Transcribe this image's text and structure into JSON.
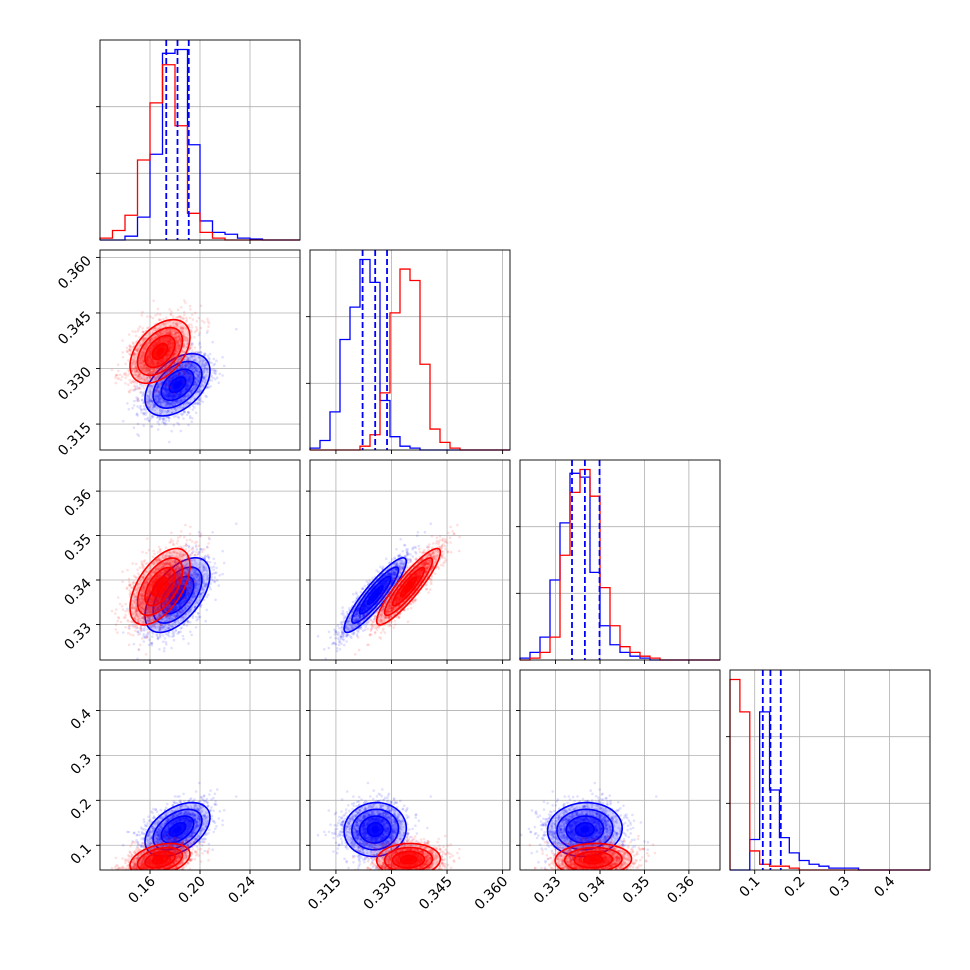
{
  "chart_data": {
    "type": "corner",
    "grid": true,
    "series_colors": {
      "blue": "#0000ff",
      "red": "#ff0000"
    },
    "parameters": [
      {
        "id": "p1",
        "range": [
          0.12,
          0.28
        ],
        "ticks": [
          0.16,
          0.2,
          0.24
        ],
        "tick_labels": [
          "0.16",
          "0.20",
          "0.24"
        ],
        "hist": {
          "bin_edges": [
            0.12,
            0.13,
            0.14,
            0.15,
            0.16,
            0.17,
            0.18,
            0.19,
            0.2,
            0.21,
            0.22,
            0.23,
            0.24,
            0.25,
            0.26,
            0.27,
            0.28
          ],
          "blue": [
            0,
            0,
            0.02,
            0.12,
            0.45,
            0.98,
            1.0,
            0.5,
            0.1,
            0.04,
            0.03,
            0.01,
            0.005,
            0,
            0,
            0
          ],
          "red": [
            0.01,
            0.05,
            0.13,
            0.42,
            0.72,
            0.92,
            0.6,
            0.14,
            0.04,
            0.01,
            0,
            0,
            0,
            0,
            0,
            0
          ]
        },
        "quantiles_blue": [
          0.173,
          0.182,
          0.191
        ]
      },
      {
        "id": "p2",
        "range": [
          0.308,
          0.362
        ],
        "ticks": [
          0.315,
          0.33,
          0.345,
          0.36
        ],
        "tick_labels": [
          "0.315",
          "0.330",
          "0.345",
          "0.360"
        ],
        "hist": {
          "bin_edges": [
            0.308,
            0.3107,
            0.3134,
            0.3161,
            0.3188,
            0.3215,
            0.3242,
            0.3269,
            0.3296,
            0.3323,
            0.335,
            0.3377,
            0.3404,
            0.3431,
            0.3458,
            0.3485,
            0.3512,
            0.3539,
            0.3566,
            0.3593,
            0.362
          ],
          "blue": [
            0.01,
            0.05,
            0.2,
            0.58,
            0.75,
            1.0,
            0.88,
            0.26,
            0.07,
            0.02,
            0.01,
            0,
            0,
            0,
            0,
            0,
            0,
            0,
            0,
            0
          ],
          "red": [
            0,
            0,
            0,
            0,
            0,
            0.02,
            0.08,
            0.3,
            0.72,
            0.95,
            0.89,
            0.45,
            0.11,
            0.04,
            0.01,
            0,
            0,
            0,
            0,
            0
          ]
        },
        "quantiles_blue": [
          0.3222,
          0.3256,
          0.3288
        ]
      },
      {
        "id": "p3",
        "range": [
          0.322,
          0.367
        ],
        "ticks": [
          0.33,
          0.34,
          0.35,
          0.36
        ],
        "tick_labels": [
          "0.33",
          "0.34",
          "0.35",
          "0.36"
        ],
        "hist": {
          "bin_edges": [
            0.322,
            0.32425,
            0.3265,
            0.32875,
            0.331,
            0.33325,
            0.3355,
            0.33775,
            0.34,
            0.34225,
            0.3445,
            0.34675,
            0.349,
            0.35125,
            0.3535,
            0.35575,
            0.358,
            0.36025,
            0.3625,
            0.36475,
            0.367
          ],
          "blue": [
            0.01,
            0.04,
            0.12,
            0.42,
            0.72,
            0.98,
            0.96,
            0.46,
            0.18,
            0.08,
            0.04,
            0.02,
            0.01,
            0,
            0,
            0,
            0,
            0,
            0,
            0
          ],
          "red": [
            0,
            0.01,
            0.04,
            0.12,
            0.55,
            0.88,
            1.0,
            0.86,
            0.38,
            0.18,
            0.07,
            0.04,
            0.02,
            0.01,
            0,
            0,
            0,
            0,
            0,
            0
          ]
        },
        "quantiles_blue": [
          0.3337,
          0.3366,
          0.3399
        ]
      },
      {
        "id": "p4",
        "range": [
          0.045,
          0.49
        ],
        "ticks": [
          0.1,
          0.2,
          0.3,
          0.4
        ],
        "tick_labels": [
          "0.1",
          "0.2",
          "0.3",
          "0.4"
        ],
        "hist": {
          "bin_edges": [
            0.045,
            0.067,
            0.089,
            0.111,
            0.133,
            0.155,
            0.177,
            0.199,
            0.221,
            0.243,
            0.265,
            0.287,
            0.309,
            0.331,
            0.353,
            0.375,
            0.397,
            0.419,
            0.441,
            0.463,
            0.49
          ],
          "blue": [
            0,
            0,
            0.16,
            0.83,
            0.42,
            0.17,
            0.09,
            0.05,
            0.03,
            0.02,
            0.01,
            0.01,
            0.01,
            0,
            0,
            0,
            0,
            0,
            0,
            0
          ],
          "red": [
            1.0,
            0.83,
            0.1,
            0.03,
            0.02,
            0.02,
            0.01,
            0,
            0,
            0,
            0,
            0,
            0,
            0,
            0,
            0,
            0,
            0,
            0,
            0
          ]
        },
        "quantiles_blue": [
          0.118,
          0.135,
          0.158
        ]
      }
    ],
    "samples": {
      "blue": {
        "mean": [
          0.182,
          0.3256,
          0.3366,
          0.135
        ],
        "sd": [
          0.013,
          0.0042,
          0.0042,
          0.03
        ],
        "corr": [
          [
            1,
            0.45,
            0.55,
            0.45
          ],
          [
            0.45,
            1,
            0.9,
            0.05
          ],
          [
            0.55,
            0.9,
            1,
            0.05
          ],
          [
            0.45,
            0.05,
            0.05,
            1
          ]
        ]
      },
      "red": {
        "mean": [
          0.168,
          0.3346,
          0.3385,
          0.068
        ],
        "sd": [
          0.012,
          0.0043,
          0.0043,
          0.018
        ],
        "corr": [
          [
            1,
            0.45,
            0.55,
            0.35
          ],
          [
            0.45,
            1,
            0.9,
            0.05
          ],
          [
            0.55,
            0.9,
            1,
            0.05
          ],
          [
            0.35,
            0.05,
            0.05,
            1
          ]
        ]
      }
    }
  }
}
